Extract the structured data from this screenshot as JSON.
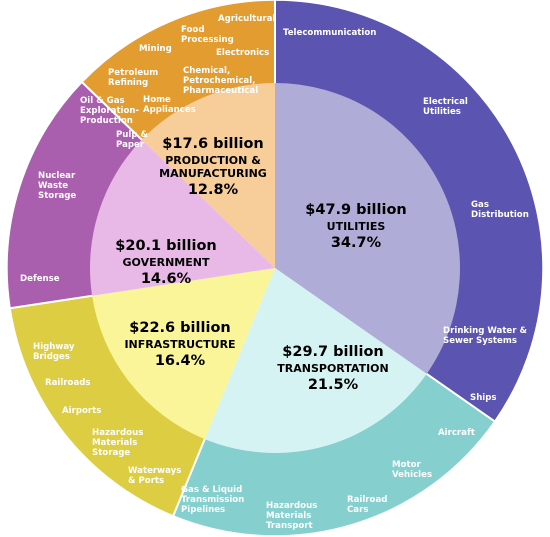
{
  "chart_data": {
    "type": "pie",
    "chart_subtype": "two-level sunburst",
    "legend": "none",
    "sectors": [
      {
        "amount": "$47.9 billion",
        "name": "UTILITIES",
        "percent_label": "34.7%",
        "percent": 34.7,
        "colors": {
          "inner": "#b0acd8",
          "outer": "#5b54b0"
        },
        "subsectors": [
          {
            "lines": [
              "Telecommunication"
            ]
          },
          {
            "lines": [
              "Electrical",
              "Utilities"
            ]
          },
          {
            "lines": [
              "Gas",
              "Distribution"
            ]
          },
          {
            "lines": [
              "Drinking Water &",
              "Sewer Systems"
            ]
          }
        ]
      },
      {
        "amount": "$29.7 billion",
        "name": "TRANSPORTATION",
        "percent_label": "21.5%",
        "percent": 21.5,
        "colors": {
          "inner": "#d6f3f4",
          "outer": "#86cfcf"
        },
        "subsectors": [
          {
            "lines": [
              "Ships"
            ]
          },
          {
            "lines": [
              "Aircraft"
            ]
          },
          {
            "lines": [
              "Motor",
              "Vehicles"
            ]
          },
          {
            "lines": [
              "Railroad",
              "Cars"
            ]
          },
          {
            "lines": [
              "Hazardous",
              "Materials",
              "Transport"
            ]
          }
        ]
      },
      {
        "amount": "$22.6 billion",
        "name": "INFRASTRUCTURE",
        "percent_label": "16.4%",
        "percent": 16.4,
        "colors": {
          "inner": "#f9f598",
          "outer": "#dccd42"
        },
        "subsectors": [
          {
            "lines": [
              "Highway",
              "Bridges"
            ]
          },
          {
            "lines": [
              "Railroads"
            ]
          },
          {
            "lines": [
              "Airports"
            ]
          },
          {
            "lines": [
              "Hazardous",
              "Materials",
              "Storage"
            ]
          },
          {
            "lines": [
              "Waterways",
              "& Ports"
            ]
          },
          {
            "lines": [
              "Gas & Liquid",
              "Transmission",
              "Pipelines"
            ]
          }
        ]
      },
      {
        "amount": "$20.1 billion",
        "name": "GOVERNMENT",
        "percent_label": "14.6%",
        "percent": 14.6,
        "colors": {
          "inner": "#e8b9e6",
          "outer": "#aa5fae"
        },
        "subsectors": [
          {
            "lines": [
              "Nuclear",
              "Waste",
              "Storage"
            ]
          },
          {
            "lines": [
              "Defense"
            ]
          }
        ]
      },
      {
        "amount": "$17.6 billion",
        "name_lines": [
          "PRODUCTION &",
          "MANUFACTURING"
        ],
        "percent_label": "12.8%",
        "percent": 12.8,
        "colors": {
          "inner": "#f7cd9a",
          "outer": "#e29c30"
        },
        "subsectors": [
          {
            "lines": [
              "Pulp &",
              "Paper"
            ]
          },
          {
            "lines": [
              "Oil & Gas",
              "Exploration-",
              "Production"
            ]
          },
          {
            "lines": [
              "Petroleum",
              "Refining"
            ]
          },
          {
            "lines": [
              "Mining"
            ]
          },
          {
            "lines": [
              "Home",
              "Appliances"
            ]
          },
          {
            "lines": [
              "Chemical,",
              "Petrochemical,",
              "Pharmaceutical"
            ]
          },
          {
            "lines": [
              "Food",
              "Processing"
            ]
          },
          {
            "lines": [
              "Electronics"
            ]
          },
          {
            "lines": [
              "Agricultural"
            ]
          }
        ]
      }
    ]
  }
}
